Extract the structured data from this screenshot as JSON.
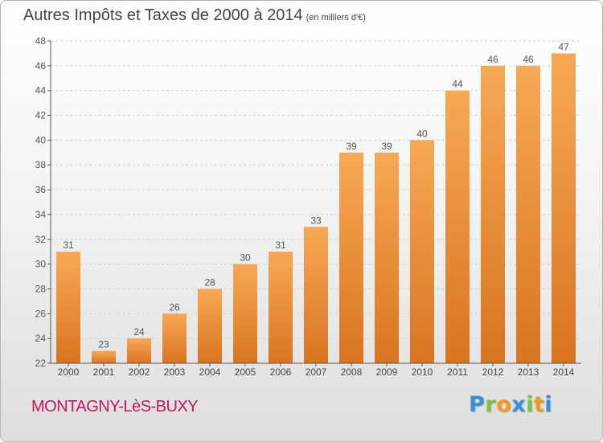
{
  "title": "Autres Impôts et Taxes de 2000 à 2014",
  "subtitle": "(en milliers d'€)",
  "commune": "MONTAGNY-LèS-BUXY",
  "logo": {
    "letters": [
      "P",
      "r",
      "o",
      "x",
      "i",
      "t",
      "i"
    ],
    "colors": [
      "#3b8fd8",
      "#7cc242",
      "#f39c12",
      "#3b8fd8",
      "#7cc242",
      "#f39c12",
      "#3b8fd8"
    ]
  },
  "colors": {
    "bar_light": "#f7a955",
    "bar_dark": "#d9741f",
    "grid": "#d2d2d2",
    "axis": "#555555",
    "commune": "#c2185b"
  },
  "chart_data": {
    "type": "bar",
    "categories": [
      "2000",
      "2001",
      "2002",
      "2003",
      "2004",
      "2005",
      "2006",
      "2007",
      "2008",
      "2009",
      "2010",
      "2011",
      "2012",
      "2013",
      "2014"
    ],
    "values": [
      31,
      23,
      24,
      26,
      28,
      30,
      31,
      33,
      39,
      39,
      40,
      44,
      46,
      46,
      47
    ],
    "yticks": [
      22,
      24,
      26,
      28,
      30,
      32,
      34,
      36,
      38,
      40,
      42,
      44,
      46,
      48
    ],
    "ylim": [
      22,
      48
    ],
    "grid": true
  }
}
